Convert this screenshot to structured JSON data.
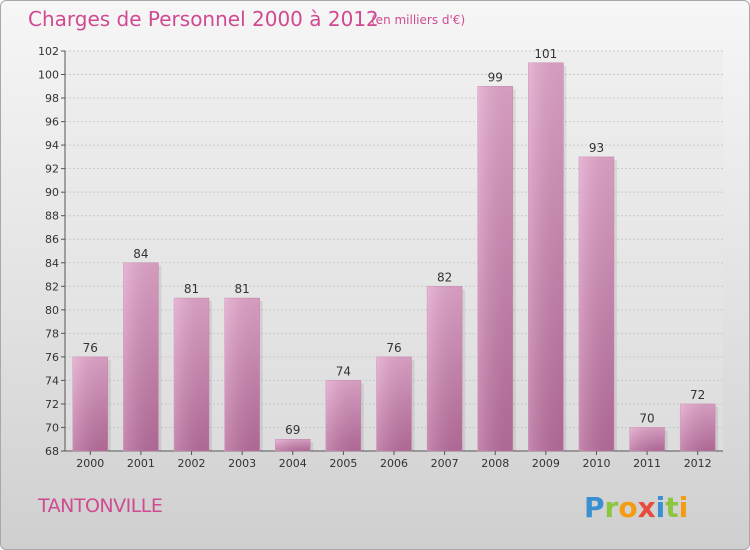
{
  "header": {
    "title": "Charges de Personnel 2000 à 2012",
    "unit": "(en milliers d'€)"
  },
  "footer": {
    "commune": "TANTONVILLE",
    "logo_text": "Proxiti"
  },
  "colors": {
    "bar": "#d88fba",
    "accent": "#d04a92"
  },
  "chart_data": {
    "type": "bar",
    "categories": [
      "2000",
      "2001",
      "2002",
      "2003",
      "2004",
      "2005",
      "2006",
      "2007",
      "2008",
      "2009",
      "2010",
      "2011",
      "2012"
    ],
    "values": [
      76,
      84,
      81,
      81,
      69,
      74,
      76,
      82,
      99,
      101,
      93,
      70,
      72
    ],
    "ylim": [
      68,
      102
    ],
    "yticks": [
      68,
      70,
      72,
      74,
      76,
      78,
      80,
      82,
      84,
      86,
      88,
      90,
      92,
      94,
      96,
      98,
      100,
      102
    ],
    "grid": true,
    "legend": "none"
  }
}
